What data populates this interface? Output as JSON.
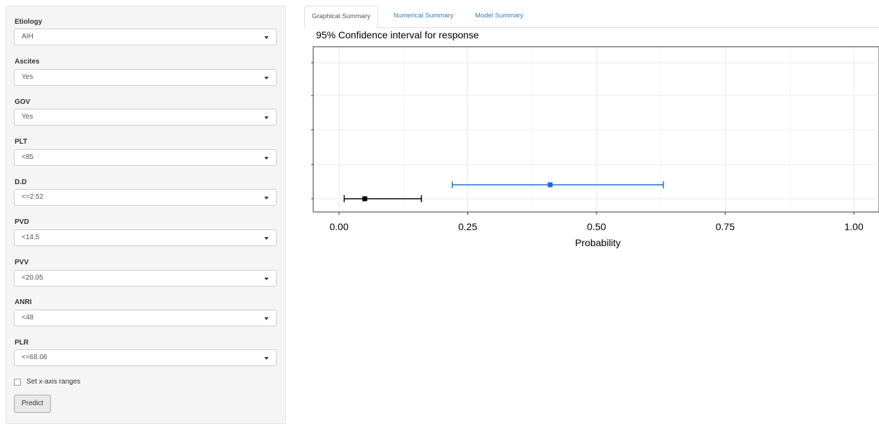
{
  "sidebar": {
    "fields": [
      {
        "label": "Etiology",
        "value": "AIH"
      },
      {
        "label": "Ascites",
        "value": "Yes"
      },
      {
        "label": "GOV",
        "value": "Yes"
      },
      {
        "label": "PLT",
        "value": "<85"
      },
      {
        "label": "D.D",
        "value": "<=2.52"
      },
      {
        "label": "PVD",
        "value": "<14.5"
      },
      {
        "label": "PVV",
        "value": "<20.05"
      },
      {
        "label": "ANRI",
        "value": "<48"
      },
      {
        "label": "PLR",
        "value": "<=68.06"
      }
    ],
    "checkbox_label": "Set x-axis ranges",
    "checkbox_checked": false,
    "predict_label": "Predict"
  },
  "tabs": [
    {
      "label": "Graphical Summary",
      "active": true
    },
    {
      "label": "Numerical Summary",
      "active": false
    },
    {
      "label": "Model Summary",
      "active": false
    }
  ],
  "colors": {
    "series_blue": "#1f6fd1",
    "series_black": "#000000",
    "link": "#337ab7"
  },
  "chart_data": {
    "type": "scatter",
    "title": "95% Confidence interval for response",
    "xlabel": "Probability",
    "ylabel": "",
    "xlim": [
      0,
      1
    ],
    "x_ticks": [
      "0.00",
      "0.25",
      "0.50",
      "0.75",
      "1.00"
    ],
    "grid": true,
    "series": [
      {
        "estimate": 0.41,
        "lower": 0.22,
        "upper": 0.63,
        "color": "#1f6fd1"
      },
      {
        "estimate": 0.05,
        "lower": 0.01,
        "upper": 0.16,
        "color": "#000000"
      }
    ]
  }
}
